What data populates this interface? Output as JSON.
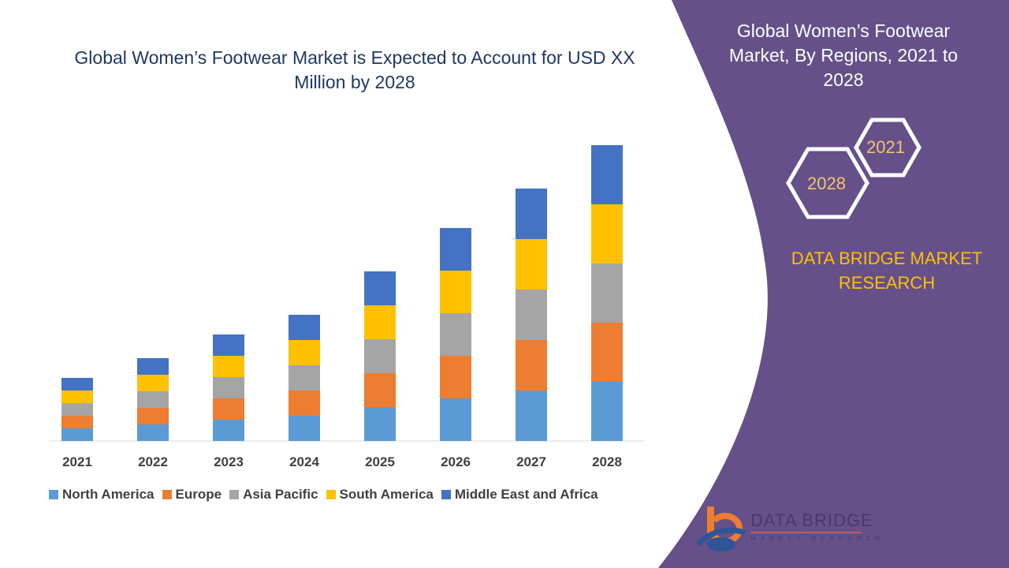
{
  "title": "Global Women’s Footwear Market is Expected to Account for USD XX Million by 2028",
  "side_panel": {
    "title": "Global Women’s Footwear Market, By Regions, 2021 to 2028",
    "hex_start": "2021",
    "hex_end": "2028",
    "brand": "DATA BRIDGE MARKET RESEARCH",
    "logo_text": "DATA BRIDGE",
    "logo_subtext": "MARKET RESEARCH",
    "panel_color": "#65508a"
  },
  "chart_data": {
    "type": "bar",
    "stacked": true,
    "categories": [
      "2021",
      "2022",
      "2023",
      "2024",
      "2025",
      "2026",
      "2027",
      "2028"
    ],
    "series": [
      {
        "name": "North America",
        "color": "#5b9bd5",
        "values": [
          16,
          21,
          27,
          32,
          43,
          54,
          64,
          75
        ]
      },
      {
        "name": "Europe",
        "color": "#ed7d31",
        "values": [
          16,
          21,
          27,
          32,
          43,
          54,
          64,
          75
        ]
      },
      {
        "name": "Asia Pacific",
        "color": "#a5a5a5",
        "values": [
          16,
          21,
          27,
          32,
          43,
          54,
          64,
          75
        ]
      },
      {
        "name": "South America",
        "color": "#ffc000",
        "values": [
          16,
          21,
          27,
          32,
          43,
          54,
          64,
          75
        ]
      },
      {
        "name": "Middle East and Africa",
        "color": "#4472c4",
        "values": [
          16,
          21,
          27,
          32,
          43,
          54,
          64,
          75
        ]
      }
    ],
    "xlabel": "",
    "ylabel": "",
    "grid": false,
    "legend": "bottom",
    "yaxis_visible": false
  }
}
